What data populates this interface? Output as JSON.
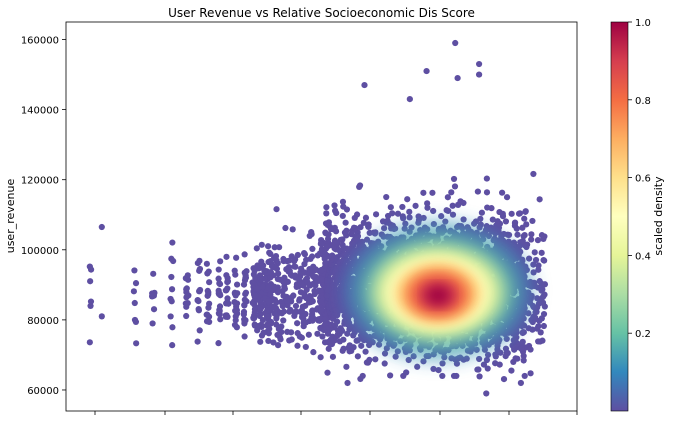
{
  "chart_data": {
    "type": "scatter",
    "title": "User Revenue vs Relative Socioeconomic Dis Score",
    "xlabel": "",
    "ylabel": "user_revenue",
    "x_tick_labels_visible": false,
    "x_tick_count": 8,
    "ylim": [
      54000,
      165000
    ],
    "y_ticks": [
      {
        "value": 60000,
        "label": "60000"
      },
      {
        "value": 80000,
        "label": "80000"
      },
      {
        "value": 100000,
        "label": "100000"
      },
      {
        "value": 120000,
        "label": "120000"
      },
      {
        "value": 140000,
        "label": "140000"
      },
      {
        "value": 160000,
        "label": "160000"
      }
    ],
    "density_peak": {
      "x": 0.74,
      "y": 86000
    },
    "notable_points": [
      {
        "x": 0.765,
        "y": 159000
      },
      {
        "x": 0.815,
        "y": 153000
      },
      {
        "x": 0.815,
        "y": 150000
      },
      {
        "x": 0.705,
        "y": 151000
      },
      {
        "x": 0.77,
        "y": 149000
      },
      {
        "x": 0.575,
        "y": 147000
      },
      {
        "x": 0.67,
        "y": 143000
      },
      {
        "x": 0.83,
        "y": 59000
      },
      {
        "x": 0.025,
        "y": 106500
      },
      {
        "x": 0.025,
        "y": 81000
      }
    ],
    "colorbar": {
      "label": "scaled density",
      "colormap": "Spectral_r",
      "range": [
        0.0,
        1.0
      ],
      "ticks": [
        {
          "value": 0.2,
          "label": "0.2"
        },
        {
          "value": 0.4,
          "label": "0.4"
        },
        {
          "value": 0.6,
          "label": "0.6"
        },
        {
          "value": 0.8,
          "label": "0.8"
        },
        {
          "value": 1.0,
          "label": "1.0"
        }
      ]
    },
    "colors": {
      "low": "#5e4fa2",
      "mid": "#ffffbf",
      "high": "#9e0142"
    }
  }
}
